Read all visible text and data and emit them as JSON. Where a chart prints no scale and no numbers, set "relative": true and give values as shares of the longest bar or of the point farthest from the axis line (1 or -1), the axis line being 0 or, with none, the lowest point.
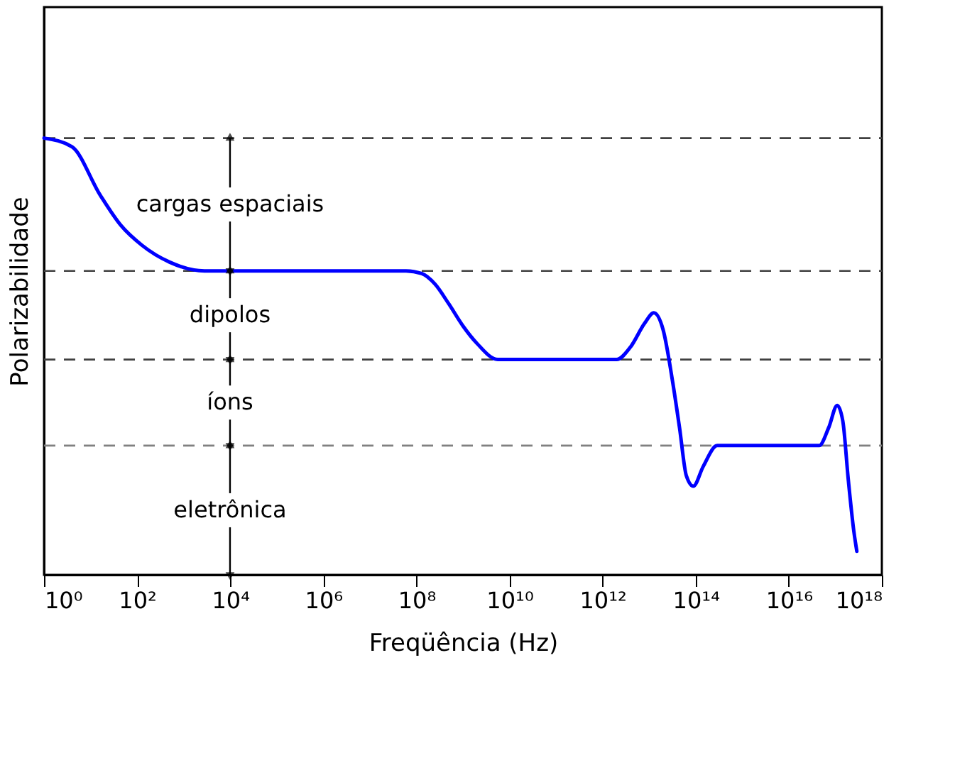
{
  "chart_data": {
    "type": "line",
    "xlabel": "Freqüência (Hz)",
    "ylabel": "Polarizabilidade",
    "relative": true,
    "log": "x",
    "xlim": [
      1,
      1e+18
    ],
    "xticks": [
      {
        "value": 1,
        "label": "10⁰"
      },
      {
        "value": 100,
        "label": "10²"
      },
      {
        "value": 10000,
        "label": "10⁴"
      },
      {
        "value": 1000000,
        "label": "10⁶"
      },
      {
        "value": 100000000,
        "label": "10⁸"
      },
      {
        "value": 10000000000.0,
        "label": "10¹⁰"
      },
      {
        "value": 1000000000000.0,
        "label": "10¹²"
      },
      {
        "value": 100000000000000.0,
        "label": "10¹⁴"
      },
      {
        "value": 1e+16,
        "label": "10¹⁶"
      },
      {
        "value": 1e+18,
        "label": "10¹⁸"
      }
    ],
    "grid": false,
    "marker": "none",
    "line_style": "solid",
    "series": [
      {
        "color": "#0000ff",
        "x": [
          1,
          4,
          16,
          45,
          126,
          500,
          2800,
          60000000.0,
          130000000.0,
          250000000.0,
          500000000.0,
          1000000000.0,
          2000000000.0,
          5600000000.0,
          2000000000000.0,
          4000000000000.0,
          8000000000000.0,
          12600000000000.0,
          20000000000000.0,
          32000000000000.0,
          45000000000000.0,
          63000000000000.0,
          89000000000000.0,
          145000000000000.0,
          290000000000000.0,
          4.5e+16,
          7.2e+16,
          1.1e+17,
          1.45e+17,
          1.9e+17,
          2.5e+17,
          2.9e+17
        ],
        "values": [
          1.0,
          0.98,
          0.87,
          0.8,
          0.755,
          0.716,
          0.696,
          0.696,
          0.69,
          0.666,
          0.62,
          0.57,
          0.53,
          0.493,
          0.493,
          0.522,
          0.576,
          0.6,
          0.561,
          0.442,
          0.337,
          0.227,
          0.203,
          0.248,
          0.296,
          0.296,
          0.337,
          0.388,
          0.352,
          0.218,
          0.1,
          0.054
        ]
      }
    ],
    "ref_lines": [
      {
        "axis": "y",
        "value": 1.0,
        "color": "#404040",
        "line_style": "dashed"
      },
      {
        "axis": "y",
        "value": 0.696,
        "color": "#404040",
        "line_style": "dashed"
      },
      {
        "axis": "y",
        "value": 0.493,
        "color": "#404040",
        "line_style": "dashed"
      },
      {
        "axis": "y",
        "value": 0.296,
        "color": "#808080",
        "line_style": "dashed"
      }
    ],
    "annotations": [
      "cargas espaciais",
      "dipolos",
      "íons",
      "eletrônica"
    ]
  }
}
